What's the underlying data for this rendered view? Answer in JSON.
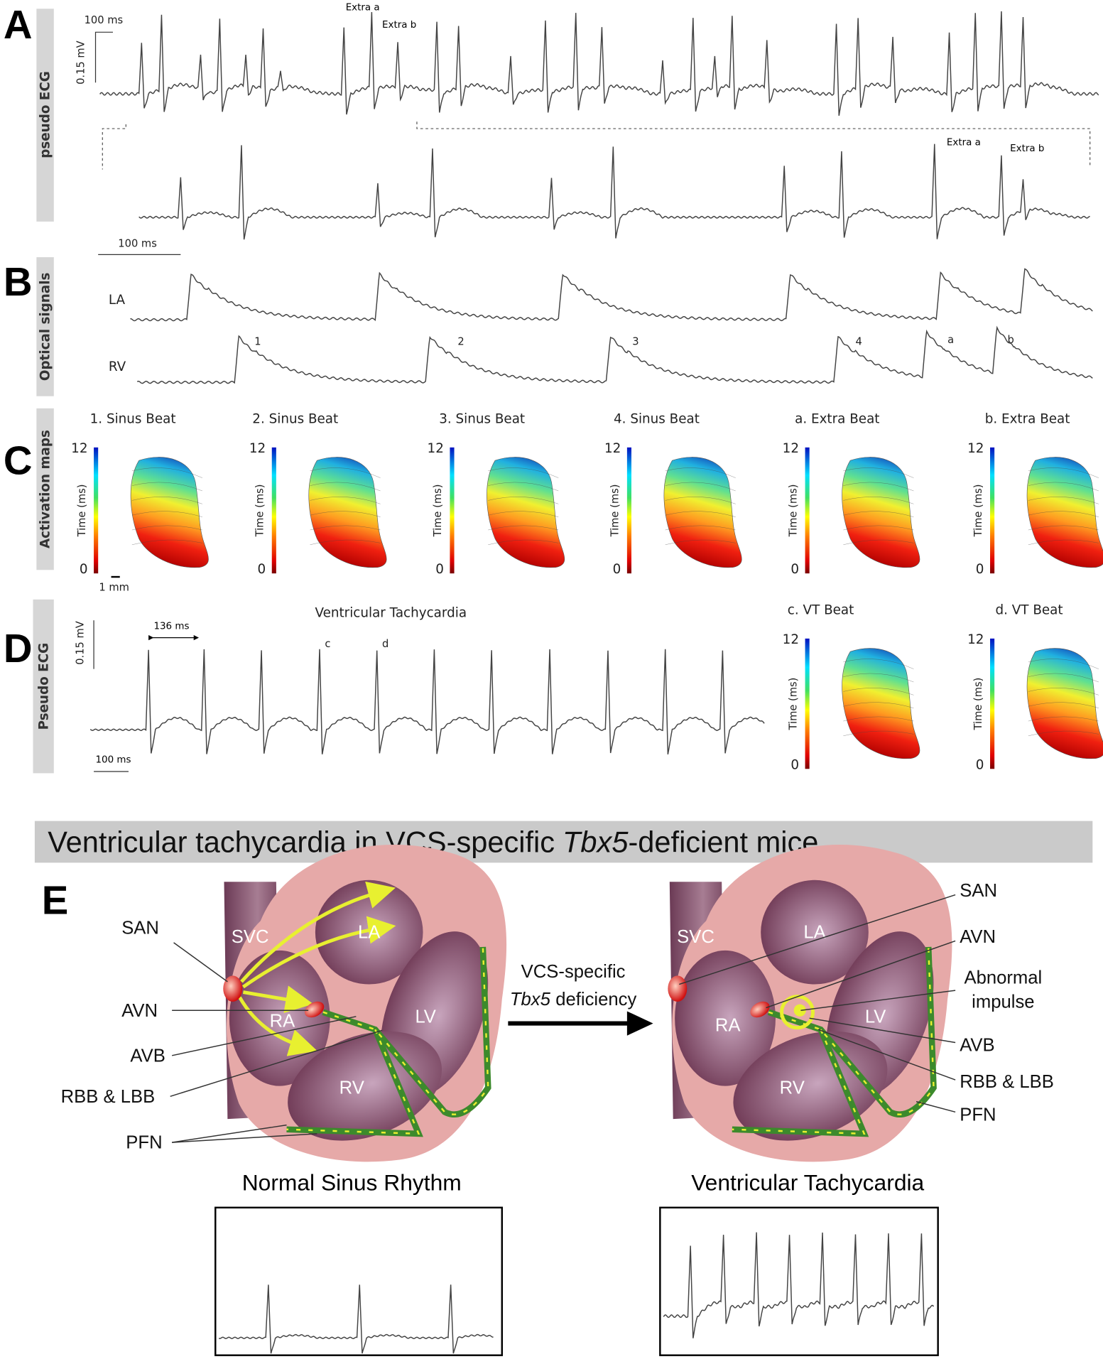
{
  "figure": {
    "A": {
      "letter": "A",
      "side_label": "pseudo ECG",
      "time_scale": "100 ms",
      "voltage_scale": "0.15 mV",
      "extra_a": "Extra a",
      "extra_b": "Extra b",
      "zoom_extra_a": "Extra a",
      "zoom_extra_b": "Extra b",
      "zoom_time_scale": "100 ms"
    },
    "B": {
      "letter": "B",
      "side_label": "Optical signals",
      "traces": [
        "LA",
        "RV"
      ],
      "beats": [
        "1",
        "2",
        "3",
        "4",
        "a",
        "b"
      ]
    },
    "C": {
      "letter": "C",
      "side_label": "Activation maps",
      "scale_bar": "1 mm",
      "maps": [
        {
          "title": "1. Sinus Beat",
          "max": "12",
          "min": "0",
          "axis": "Time (ms)"
        },
        {
          "title": "2. Sinus Beat",
          "max": "12",
          "min": "0",
          "axis": "Time (ms)"
        },
        {
          "title": "3. Sinus Beat",
          "max": "12",
          "min": "0",
          "axis": "Time (ms)"
        },
        {
          "title": "4. Sinus Beat",
          "max": "12",
          "min": "0",
          "axis": "Time (ms)"
        },
        {
          "title": "a. Extra Beat",
          "max": "12",
          "min": "0",
          "axis": "Time (ms)"
        },
        {
          "title": "b. Extra Beat",
          "max": "12",
          "min": "0",
          "axis": "Time (ms)"
        }
      ]
    },
    "D": {
      "letter": "D",
      "side_label": "Pseudo ECG",
      "title": "Ventricular Tachycardia",
      "voltage_scale": "0.15 mV",
      "interval": "136 ms",
      "time_scale": "100 ms",
      "beats": [
        "c",
        "d"
      ],
      "maps": [
        {
          "title": "c. VT Beat",
          "max": "12",
          "min": "0",
          "axis": "Time (ms)"
        },
        {
          "title": "d. VT Beat",
          "max": "12",
          "min": "0",
          "axis": "Time (ms)"
        }
      ]
    },
    "E": {
      "banner": {
        "before": "Ventricular tachycardia in VCS-specific",
        "italic": "Tbx5",
        "after": "-deficient mice"
      },
      "letter": "E",
      "left_heart": {
        "chambers": [
          "SVC",
          "LA",
          "RA",
          "LV",
          "RV"
        ],
        "labels": [
          "SAN",
          "AVN",
          "AVB",
          "RBB & LBB",
          "PFN"
        ],
        "caption": "Normal Sinus Rhythm"
      },
      "arrow": {
        "line1": "VCS-specific",
        "line2_italic": "Tbx5",
        "line2_rest": "deficiency"
      },
      "right_heart": {
        "chambers": [
          "SVC",
          "LA",
          "RA",
          "LV",
          "RV"
        ],
        "labels": [
          "SAN",
          "AVN",
          "Abnormal",
          "impulse",
          "AVB",
          "RBB & LBB",
          "PFN"
        ],
        "caption": "Ventricular Tachycardia"
      }
    }
  }
}
